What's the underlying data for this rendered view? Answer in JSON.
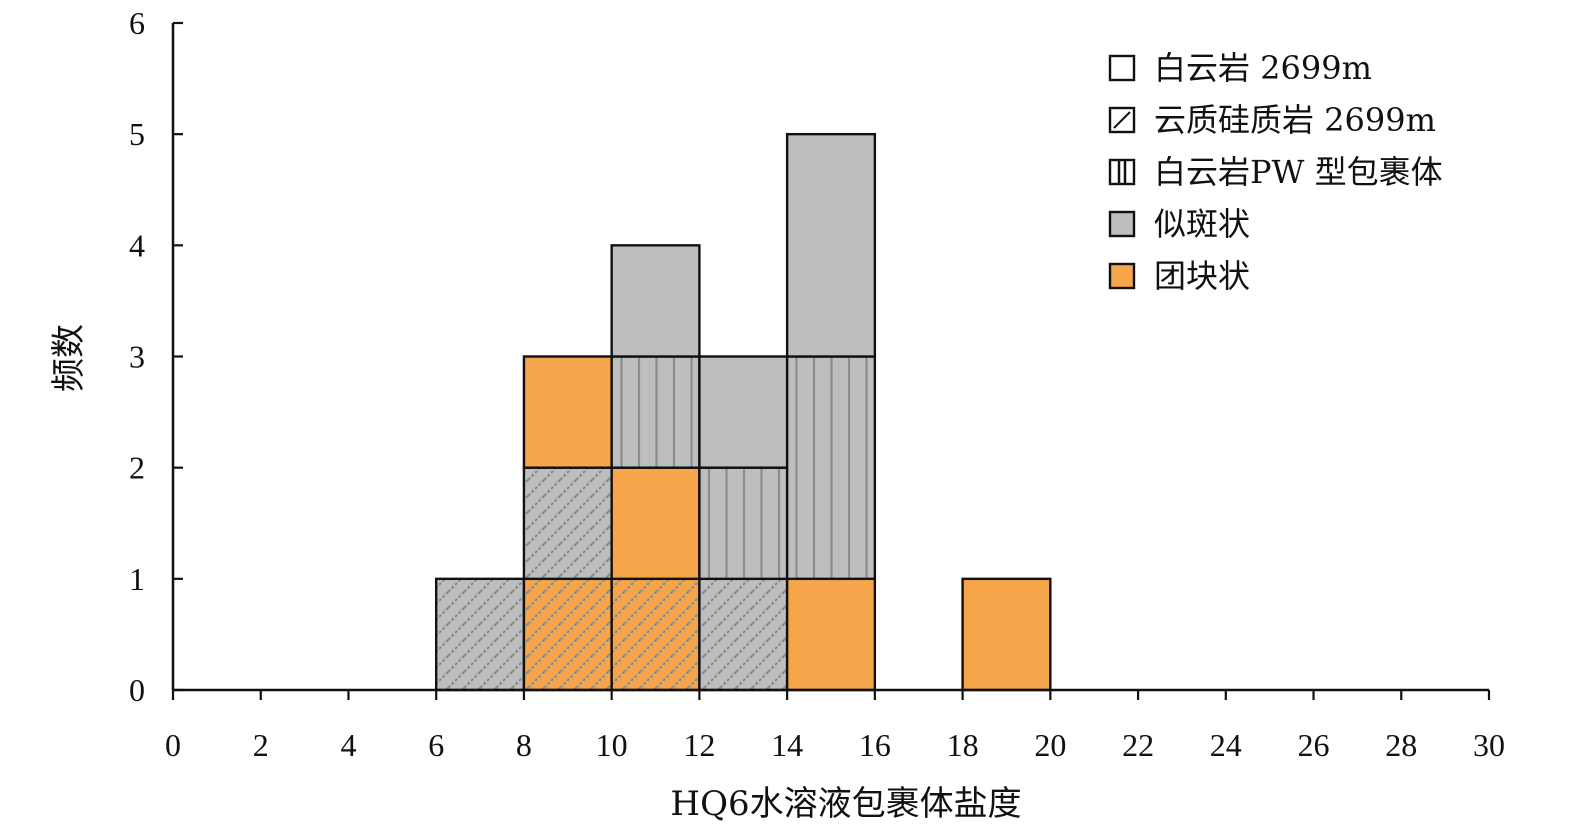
{
  "chart_data": {
    "type": "bar",
    "subtype": "stacked-histogram",
    "xlabel": "HQ6水溶液包裹体盐度",
    "ylabel": "频数",
    "xlim": [
      0,
      30
    ],
    "ylim": [
      0,
      6
    ],
    "xticks": [
      "0",
      "2",
      "4",
      "6",
      "8",
      "10",
      "12",
      "14",
      "16",
      "18",
      "20",
      "22",
      "24",
      "26",
      "28",
      "30"
    ],
    "yticks": [
      "0",
      "1",
      "2",
      "3",
      "4",
      "5",
      "6"
    ],
    "grid": false,
    "legend_position": "top-right",
    "legend": [
      {
        "key": "dolomite",
        "label": "白云岩 2699m",
        "pattern": "none"
      },
      {
        "key": "siliceous",
        "label": "云质硅质岩 2699m",
        "pattern": "diagonal"
      },
      {
        "key": "pw",
        "label": "白云岩PW 型包裹体",
        "pattern": "vertical"
      },
      {
        "key": "porphyritic",
        "label": "似斑状",
        "color": "#bdbec0"
      },
      {
        "key": "clumped",
        "label": "团块状",
        "color": "#f7a54a"
      }
    ],
    "colors": {
      "porphyritic": "#bdbec0",
      "clumped": "#f7a54a",
      "outline": "#111111"
    },
    "bars": [
      {
        "x0": 6,
        "x1": 8,
        "y0": 0,
        "y1": 1,
        "fill": "porphyritic",
        "pattern": "diagonal"
      },
      {
        "x0": 8,
        "x1": 10,
        "y0": 0,
        "y1": 1,
        "fill": "clumped",
        "pattern": "diagonal"
      },
      {
        "x0": 8,
        "x1": 10,
        "y0": 1,
        "y1": 2,
        "fill": "porphyritic",
        "pattern": "diagonal"
      },
      {
        "x0": 8,
        "x1": 10,
        "y0": 2,
        "y1": 3,
        "fill": "clumped",
        "pattern": "none"
      },
      {
        "x0": 10,
        "x1": 12,
        "y0": 0,
        "y1": 1,
        "fill": "clumped",
        "pattern": "diagonal"
      },
      {
        "x0": 10,
        "x1": 12,
        "y0": 1,
        "y1": 2,
        "fill": "clumped",
        "pattern": "none"
      },
      {
        "x0": 10,
        "x1": 12,
        "y0": 2,
        "y1": 3,
        "fill": "porphyritic",
        "pattern": "vertical"
      },
      {
        "x0": 10,
        "x1": 12,
        "y0": 3,
        "y1": 4,
        "fill": "porphyritic",
        "pattern": "none"
      },
      {
        "x0": 12,
        "x1": 14,
        "y0": 0,
        "y1": 1,
        "fill": "porphyritic",
        "pattern": "diagonal"
      },
      {
        "x0": 12,
        "x1": 14,
        "y0": 1,
        "y1": 2,
        "fill": "porphyritic",
        "pattern": "vertical"
      },
      {
        "x0": 12,
        "x1": 14,
        "y0": 2,
        "y1": 3,
        "fill": "porphyritic",
        "pattern": "none"
      },
      {
        "x0": 14,
        "x1": 16,
        "y0": 0,
        "y1": 1,
        "fill": "clumped",
        "pattern": "none"
      },
      {
        "x0": 14,
        "x1": 16,
        "y0": 1,
        "y1": 3,
        "fill": "porphyritic",
        "pattern": "vertical"
      },
      {
        "x0": 14,
        "x1": 16,
        "y0": 3,
        "y1": 5,
        "fill": "porphyritic",
        "pattern": "none"
      },
      {
        "x0": 18,
        "x1": 20,
        "y0": 0,
        "y1": 1,
        "fill": "clumped",
        "pattern": "none"
      }
    ]
  }
}
